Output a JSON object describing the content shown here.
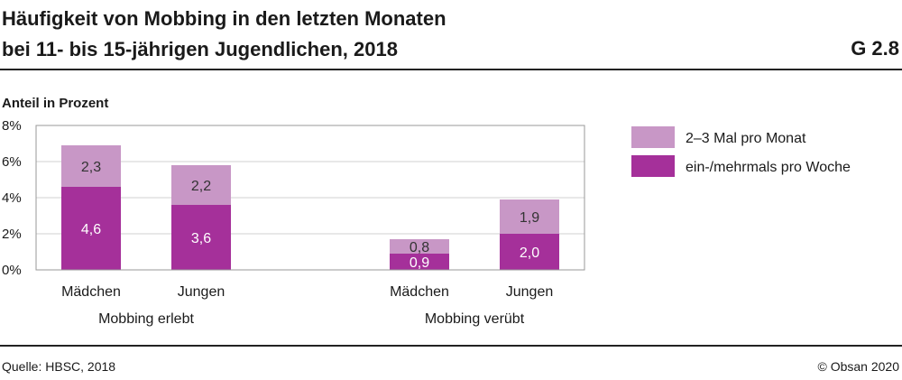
{
  "header": {
    "title_line1": "Häufigkeit von Mobbing in den letzten Monaten",
    "title_line2": "bei 11- bis 15-jährigen Jugendlichen, 2018",
    "figure_code": "G 2.8"
  },
  "footer": {
    "source": "Quelle: HBSC, 2018",
    "copyright": "© Obsan 2020"
  },
  "colors": {
    "weekly": "#a5309a",
    "monthly": "#c897c6",
    "label_on_dark": "#ffffff",
    "label_on_light": "#333333",
    "grid": "#d0d0d0",
    "axis": "#999999"
  },
  "chart_data": {
    "type": "bar",
    "stacked": true,
    "title": "Häufigkeit von Mobbing in den letzten Monaten bei 11- bis 15-jährigen Jugendlichen, 2018",
    "ylabel": "Anteil in Prozent",
    "ylim": [
      0,
      8
    ],
    "yticks": [
      0,
      2,
      4,
      6,
      8
    ],
    "ytick_labels": [
      "0%",
      "2%",
      "4%",
      "6%",
      "8%"
    ],
    "grid": true,
    "legend_position": "right",
    "groups": [
      {
        "label": "Mobbing erlebt",
        "categories": [
          "Mädchen",
          "Jungen"
        ]
      },
      {
        "label": "Mobbing verübt",
        "categories": [
          "Mädchen",
          "Jungen"
        ]
      }
    ],
    "categories": [
      "Mädchen",
      "Jungen",
      "Mädchen",
      "Jungen"
    ],
    "series": [
      {
        "name": "ein-/mehrmals pro Woche",
        "color": "#a5309a",
        "values": [
          4.6,
          3.6,
          0.9,
          2.0
        ],
        "labels": [
          "4,6",
          "3,6",
          "0,9",
          "2,0"
        ]
      },
      {
        "name": "2–3 Mal pro Monat",
        "color": "#c897c6",
        "values": [
          2.3,
          2.2,
          0.8,
          1.9
        ],
        "labels": [
          "2,3",
          "2,2",
          "0,8",
          "1,9"
        ]
      }
    ],
    "legend": [
      "2–3 Mal pro Monat",
      "ein-/mehrmals pro Woche"
    ]
  }
}
